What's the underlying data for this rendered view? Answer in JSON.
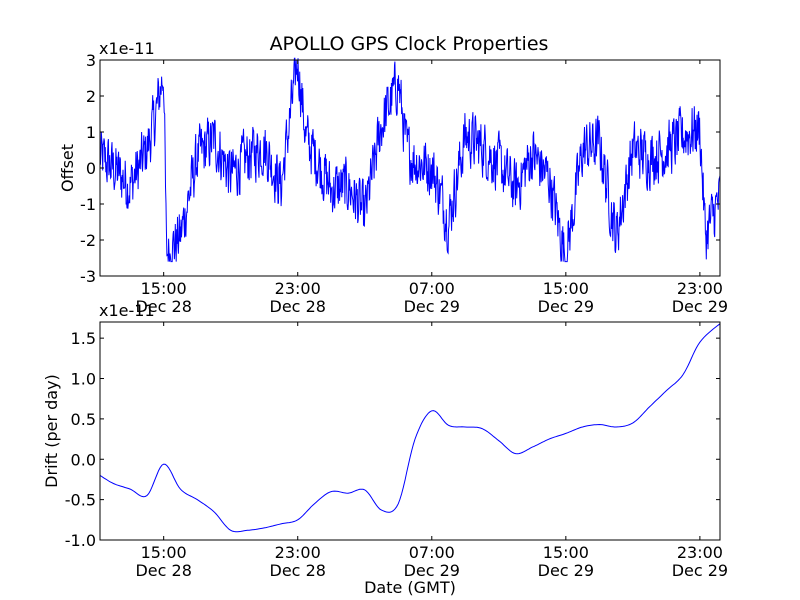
{
  "title": "APOLLO GPS Clock Properties",
  "colors": {
    "series": "#0000ff",
    "axes": "#000000",
    "background": "#ffffff"
  },
  "chart_data": [
    {
      "type": "line",
      "name": "offset",
      "ylabel": "Offset",
      "xlabel": "",
      "y_multiplier": "x1e-11",
      "ylim": [
        -3,
        3
      ],
      "yticks": [
        -3,
        -2,
        -1,
        0,
        1,
        2,
        3
      ],
      "ytick_labels": [
        "-3",
        "-2",
        "-1",
        "0",
        "1",
        "2",
        "3"
      ],
      "xlim": [
        "2008-12-28 11:12",
        "2008-12-30 00:12"
      ],
      "xtick_labels": [
        {
          "time": "15:00",
          "date": "Dec 28"
        },
        {
          "time": "23:00",
          "date": "Dec 28"
        },
        {
          "time": "07:00",
          "date": "Dec 29"
        },
        {
          "time": "15:00",
          "date": "Dec 29"
        },
        {
          "time": "23:00",
          "date": "Dec 29"
        }
      ],
      "grid": false,
      "anchors": [
        [
          "2008-12-28 11:12",
          0.3
        ],
        [
          "2008-12-28 12:00",
          0.0
        ],
        [
          "2008-12-28 13:00",
          -0.5
        ],
        [
          "2008-12-28 14:00",
          0.5
        ],
        [
          "2008-12-28 14:30",
          1.4
        ],
        [
          "2008-12-28 15:00",
          2.7
        ],
        [
          "2008-12-28 15:10",
          -2.4
        ],
        [
          "2008-12-28 16:00",
          -1.9
        ],
        [
          "2008-12-28 17:00",
          0.3
        ],
        [
          "2008-12-28 18:00",
          0.8
        ],
        [
          "2008-12-28 19:00",
          -0.2
        ],
        [
          "2008-12-28 20:00",
          0.3
        ],
        [
          "2008-12-28 21:00",
          0.6
        ],
        [
          "2008-12-28 22:00",
          -0.5
        ],
        [
          "2008-12-28 23:00",
          3.0
        ],
        [
          "2008-12-28 23:30",
          0.8
        ],
        [
          "2008-12-29 00:00",
          0.4
        ],
        [
          "2008-12-29 01:00",
          -0.6
        ],
        [
          "2008-12-29 02:00",
          -0.5
        ],
        [
          "2008-12-29 03:00",
          -1.3
        ],
        [
          "2008-12-29 04:00",
          1.2
        ],
        [
          "2008-12-29 05:00",
          2.4
        ],
        [
          "2008-12-29 05:30",
          0.5
        ],
        [
          "2008-12-29 06:00",
          0.2
        ],
        [
          "2008-12-29 07:00",
          0.0
        ],
        [
          "2008-12-29 07:30",
          -0.7
        ],
        [
          "2008-12-29 08:00",
          -1.5
        ],
        [
          "2008-12-29 09:00",
          0.9
        ],
        [
          "2008-12-29 10:00",
          0.6
        ],
        [
          "2008-12-29 11:00",
          0.1
        ],
        [
          "2008-12-29 12:00",
          -0.6
        ],
        [
          "2008-12-29 13:00",
          0.4
        ],
        [
          "2008-12-29 14:00",
          -0.3
        ],
        [
          "2008-12-29 15:00",
          -2.5
        ],
        [
          "2008-12-29 16:00",
          0.5
        ],
        [
          "2008-12-29 17:00",
          0.7
        ],
        [
          "2008-12-29 18:00",
          -1.9
        ],
        [
          "2008-12-29 19:00",
          0.5
        ],
        [
          "2008-12-29 20:00",
          0.3
        ],
        [
          "2008-12-29 21:00",
          0.5
        ],
        [
          "2008-12-29 22:00",
          0.9
        ],
        [
          "2008-12-29 23:00",
          1.1
        ],
        [
          "2008-12-29 23:20",
          -1.9
        ],
        [
          "2008-12-30 00:12",
          -0.8
        ]
      ]
    },
    {
      "type": "line",
      "name": "drift",
      "ylabel": "Drift (per day)",
      "xlabel": "Date (GMT)",
      "y_multiplier": "x1e-11",
      "ylim": [
        -1.0,
        1.7
      ],
      "yticks": [
        -1.0,
        -0.5,
        0.0,
        0.5,
        1.0,
        1.5
      ],
      "ytick_labels": [
        "-1.0",
        "-0.5",
        "0.0",
        "0.5",
        "1.0",
        "1.5"
      ],
      "xlim": [
        "2008-12-28 11:12",
        "2008-12-30 00:12"
      ],
      "xtick_labels": [
        {
          "time": "15:00",
          "date": "Dec 28"
        },
        {
          "time": "23:00",
          "date": "Dec 28"
        },
        {
          "time": "07:00",
          "date": "Dec 29"
        },
        {
          "time": "15:00",
          "date": "Dec 29"
        },
        {
          "time": "23:00",
          "date": "Dec 29"
        }
      ],
      "grid": false,
      "x": [
        "2008-12-28 11:12",
        "2008-12-28 12:00",
        "2008-12-28 13:00",
        "2008-12-28 14:00",
        "2008-12-28 15:00",
        "2008-12-28 16:00",
        "2008-12-28 17:00",
        "2008-12-28 18:00",
        "2008-12-28 19:00",
        "2008-12-28 20:00",
        "2008-12-28 21:00",
        "2008-12-28 22:00",
        "2008-12-28 23:00",
        "2008-12-29 00:00",
        "2008-12-29 01:00",
        "2008-12-29 02:00",
        "2008-12-29 03:00",
        "2008-12-29 04:00",
        "2008-12-29 05:00",
        "2008-12-29 06:00",
        "2008-12-29 07:00",
        "2008-12-29 08:00",
        "2008-12-29 09:00",
        "2008-12-29 10:00",
        "2008-12-29 11:00",
        "2008-12-29 12:00",
        "2008-12-29 13:00",
        "2008-12-29 14:00",
        "2008-12-29 15:00",
        "2008-12-29 16:00",
        "2008-12-29 17:00",
        "2008-12-29 18:00",
        "2008-12-29 19:00",
        "2008-12-29 20:00",
        "2008-12-29 21:00",
        "2008-12-29 22:00",
        "2008-12-29 23:00",
        "2008-12-30 00:12"
      ],
      "y": [
        -0.2,
        -0.3,
        -0.37,
        -0.45,
        -0.06,
        -0.37,
        -0.5,
        -0.65,
        -0.88,
        -0.88,
        -0.85,
        -0.8,
        -0.75,
        -0.55,
        -0.4,
        -0.42,
        -0.38,
        -0.63,
        -0.55,
        0.25,
        0.6,
        0.42,
        0.4,
        0.38,
        0.23,
        0.07,
        0.15,
        0.25,
        0.32,
        0.4,
        0.43,
        0.4,
        0.45,
        0.65,
        0.85,
        1.05,
        1.45,
        1.68
      ]
    }
  ]
}
